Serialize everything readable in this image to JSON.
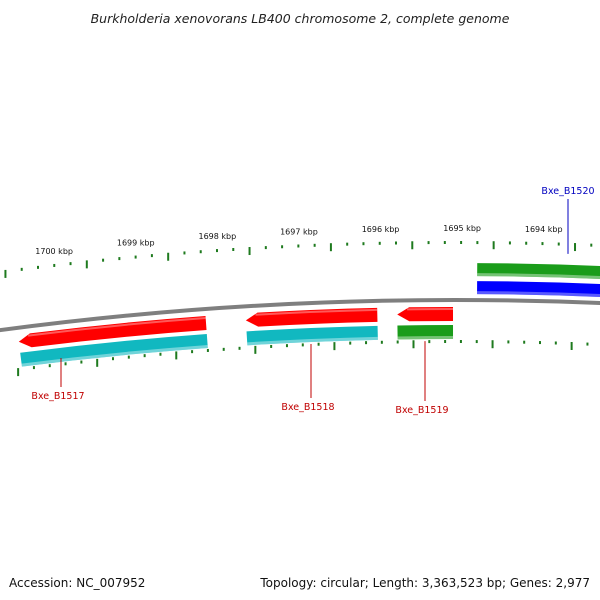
{
  "title": "Burkholderia xenovorans LB400 chromosome 2, complete genome",
  "footer": {
    "accession": "Accession: NC_007952",
    "summary": "Topology: circular; Length: 3,363,523 bp; Genes: 2,977"
  },
  "colors": {
    "backbone": "#7f7f7f",
    "ticks": "#1e7a1e",
    "cds_forward": "#ff0000",
    "cds_reverse": "#ff0000",
    "gene_reverse": "#11b8c0",
    "gene_forward": "#1a9c1a",
    "cds_blue": "#0000ff",
    "label_red": "#c00000",
    "label_blue": "#0000c0"
  },
  "scale_labels": [
    "1700 kbp",
    "1699 kbp",
    "1698 kbp",
    "1697 kbp",
    "1696 kbp",
    "1695 kbp",
    "1694 kbp"
  ],
  "scale_positions_kbp": [
    1700,
    1699,
    1698,
    1697,
    1696,
    1695,
    1694
  ],
  "view": {
    "start_kbp": 1700.55,
    "end_kbp": 1693.4
  },
  "genes": [
    {
      "name": "Bxe_B1517",
      "start_kbp": 1700.55,
      "end_kbp": 1698.2,
      "strand": "reverse",
      "cds_color": "#ff0000",
      "gene_color": "#11b8c0",
      "label_color": "#c00000"
    },
    {
      "name": "Bxe_B1518",
      "start_kbp": 1697.7,
      "end_kbp": 1696.05,
      "strand": "reverse",
      "cds_color": "#ff0000",
      "gene_color": "#11b8c0",
      "label_color": "#c00000"
    },
    {
      "name": "Bxe_B1519",
      "start_kbp": 1695.8,
      "end_kbp": 1695.1,
      "strand": "reverse",
      "cds_color": "#ff0000",
      "gene_color": "#1a9c1a",
      "label_color": "#c00000"
    },
    {
      "name": "Bxe_B1520",
      "start_kbp": 1694.8,
      "end_kbp": 1693.4,
      "strand": "forward",
      "cds_color": "#0000ff",
      "gene_color": "#1a9c1a",
      "label_color": "#0000c0"
    }
  ]
}
